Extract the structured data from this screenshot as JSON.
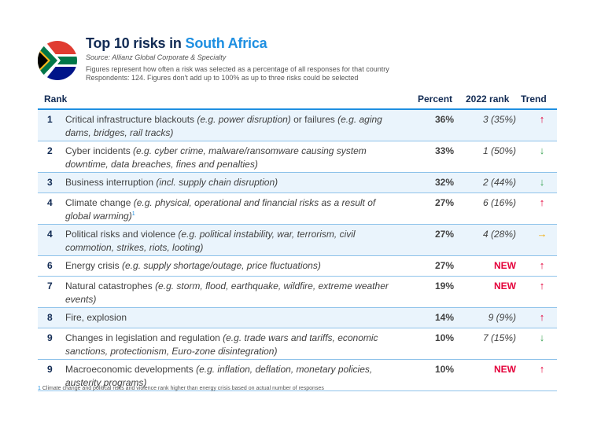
{
  "header": {
    "title_prefix": "Top 10 risks in ",
    "title_country": "South Africa",
    "source": "Source: Allianz Global Corporate & Specialty",
    "description_line1": "Figures represent how often a risk was selected as a percentage of all responses for that country",
    "description_line2": "Respondents: 124. Figures don't add up to 100% as up to three risks could be selected"
  },
  "table": {
    "columns": {
      "rank": "Rank",
      "percent": "Percent",
      "rank_2022": "2022 rank",
      "trend": "Trend"
    },
    "rows": [
      {
        "rank": "1",
        "risk": "Critical infrastructure blackouts ",
        "examples": "(e.g. power disruption)",
        "risk_b": " or failures ",
        "examples_b": "(e.g. aging dams, bridges, rail tracks)",
        "footnote_mark": "",
        "percent": "36%",
        "rank_2022": "3 (35%)",
        "trend": "↑",
        "trend_color": "#E4003A"
      },
      {
        "rank": "2",
        "risk": "Cyber incidents ",
        "examples": "(e.g. cyber crime, malware/ransomware causing system downtime, data breaches, fines and penalties)",
        "risk_b": "",
        "examples_b": "",
        "footnote_mark": "",
        "percent": "33%",
        "rank_2022": "1 (50%)",
        "trend": "↓",
        "trend_color": "#3DA556"
      },
      {
        "rank": "3",
        "risk": "Business interruption ",
        "examples": "(incl. supply chain disruption)",
        "risk_b": "",
        "examples_b": "",
        "footnote_mark": "",
        "percent": "32%",
        "rank_2022": "2 (44%)",
        "trend": "↓",
        "trend_color": "#3DA556"
      },
      {
        "rank": "4",
        "risk": "Climate change ",
        "examples": "(e.g. physical, operational and financial risks as a result of global warming)",
        "risk_b": "",
        "examples_b": "",
        "footnote_mark": "1",
        "percent": "27%",
        "rank_2022": "6 (16%)",
        "trend": "↑",
        "trend_color": "#E4003A"
      },
      {
        "rank": "4",
        "risk": "Political risks and violence ",
        "examples": "(e.g. political instability, war, terrorism, civil commotion, strikes, riots, looting)",
        "risk_b": "",
        "examples_b": "",
        "footnote_mark": "",
        "percent": "27%",
        "rank_2022": "4 (28%)",
        "trend": "→",
        "trend_color": "#F2A900"
      },
      {
        "rank": "6",
        "risk": "Energy crisis ",
        "examples": "(e.g. supply shortage/outage, price fluctuations)",
        "risk_b": "",
        "examples_b": "",
        "footnote_mark": "",
        "percent": "27%",
        "rank_2022": "NEW",
        "trend": "↑",
        "trend_color": "#E4003A"
      },
      {
        "rank": "7",
        "risk": "Natural catastrophes ",
        "examples": "(e.g. storm, flood, earthquake, wildfire, extreme weather events)",
        "risk_b": "",
        "examples_b": "",
        "footnote_mark": "",
        "percent": "19%",
        "rank_2022": "NEW",
        "trend": "↑",
        "trend_color": "#E4003A"
      },
      {
        "rank": "8",
        "risk": "Fire, explosion",
        "examples": "",
        "risk_b": "",
        "examples_b": "",
        "footnote_mark": "",
        "percent": "14%",
        "rank_2022": "9 (9%)",
        "trend": "↑",
        "trend_color": "#E4003A"
      },
      {
        "rank": "9",
        "risk": "Changes in legislation and regulation ",
        "examples": "(e.g. trade wars and tariffs, economic sanctions, protectionism, Euro-zone disintegration)",
        "risk_b": "",
        "examples_b": "",
        "footnote_mark": "",
        "percent": "10%",
        "rank_2022": "7 (15%)",
        "trend": "↓",
        "trend_color": "#3DA556"
      },
      {
        "rank": "9",
        "risk": "Macroeconomic developments ",
        "examples": "(e.g. inflation, deflation, monetary policies, austerity programs)",
        "risk_b": "",
        "examples_b": "",
        "footnote_mark": "",
        "percent": "10%",
        "rank_2022": "NEW",
        "trend": "↑",
        "trend_color": "#E4003A"
      }
    ]
  },
  "footnote": {
    "number": "1",
    "text": " Climate change and political risks and violence rank higher than energy crisis based on actual number of responses"
  },
  "flag_icon": "south-africa-flag-icon",
  "colors": {
    "title": "#122B54",
    "accent": "#1E8FE1",
    "up": "#E4003A",
    "down": "#3DA556",
    "same": "#F2A900",
    "row_shade": "#EAF4FC"
  }
}
